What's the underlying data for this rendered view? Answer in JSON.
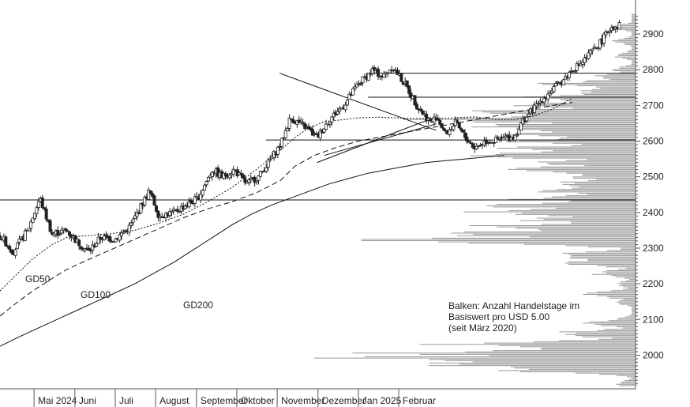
{
  "chart_data": {
    "type": "candlestick",
    "price_range": [
      1910,
      2960
    ],
    "x_tick_labels": [
      "Mai 2024",
      "Juni",
      "Juli",
      "August",
      "September",
      "Oktober",
      "November",
      "Dezember",
      "Jan 2025",
      "Februar"
    ],
    "y_tick_values": [
      2000,
      2100,
      2200,
      2300,
      2400,
      2500,
      2600,
      2700,
      2800,
      2900
    ],
    "moving_average_labels": {
      "gd50": "GD50",
      "gd100": "GD100",
      "gd200": "GD200"
    },
    "note_lines": [
      "Balken: Anzahl Handelstage im",
      "Basiswert pro USD 5.00",
      "(seit März 2020)"
    ],
    "horizontal_levels": [
      2435,
      2603,
      2723,
      2790
    ],
    "trend_lines": [
      {
        "from": [
          2024.838,
          2790
        ],
        "to": [
          2025.16,
          2630
        ]
      },
      {
        "from": [
          2024.915,
          2540
        ],
        "to": [
          2025.16,
          2668
        ]
      },
      {
        "from": [
          2024.93,
          2560
        ],
        "to": [
          2025.16,
          2648
        ]
      }
    ],
    "price_path": [
      [
        2024.263,
        2335
      ],
      [
        2024.29,
        2290
      ],
      [
        2024.32,
        2350
      ],
      [
        2024.345,
        2440
      ],
      [
        2024.37,
        2340
      ],
      [
        2024.4,
        2350
      ],
      [
        2024.42,
        2320
      ],
      [
        2024.445,
        2290
      ],
      [
        2024.47,
        2330
      ],
      [
        2024.5,
        2325
      ],
      [
        2024.53,
        2360
      ],
      [
        2024.55,
        2410
      ],
      [
        2024.57,
        2460
      ],
      [
        2024.59,
        2390
      ],
      [
        2024.62,
        2400
      ],
      [
        2024.645,
        2420
      ],
      [
        2024.67,
        2440
      ],
      [
        2024.7,
        2520
      ],
      [
        2024.72,
        2500
      ],
      [
        2024.745,
        2520
      ],
      [
        2024.77,
        2480
      ],
      [
        2024.795,
        2500
      ],
      [
        2024.815,
        2540
      ],
      [
        2024.84,
        2590
      ],
      [
        2024.86,
        2665
      ],
      [
        2024.89,
        2640
      ],
      [
        2024.915,
        2610
      ],
      [
        2024.94,
        2660
      ],
      [
        2024.97,
        2700
      ],
      [
        2025.0,
        2760
      ],
      [
        2025.03,
        2800
      ],
      [
        2025.05,
        2780
      ],
      [
        2025.07,
        2810
      ],
      [
        2025.1,
        2750
      ],
      [
        2025.12,
        2700
      ],
      [
        2025.15,
        2650
      ],
      [
        2025.16,
        2670
      ],
      [
        2025.18,
        2620
      ],
      [
        2025.2,
        2650
      ],
      [
        2025.22,
        2610
      ],
      [
        2025.24,
        2580
      ],
      [
        2025.26,
        2600
      ],
      [
        2025.28,
        2600
      ],
      [
        2025.3,
        2610
      ],
      [
        2025.32,
        2610
      ],
      [
        2025.34,
        2660
      ],
      [
        2025.36,
        2690
      ],
      [
        2025.38,
        2720
      ],
      [
        2025.4,
        2745
      ],
      [
        2025.42,
        2770
      ],
      [
        2025.44,
        2800
      ],
      [
        2025.46,
        2820
      ],
      [
        2025.48,
        2850
      ],
      [
        2025.5,
        2880
      ],
      [
        2025.52,
        2920
      ],
      [
        2025.54,
        2925
      ]
    ],
    "gd50_path": [
      [
        2024.263,
        2180
      ],
      [
        2024.3,
        2230
      ],
      [
        2024.33,
        2270
      ],
      [
        2024.37,
        2310
      ],
      [
        2024.4,
        2330
      ],
      [
        2024.44,
        2335
      ],
      [
        2024.49,
        2340
      ],
      [
        2024.54,
        2350
      ],
      [
        2024.59,
        2370
      ],
      [
        2024.64,
        2395
      ],
      [
        2024.69,
        2430
      ],
      [
        2024.74,
        2470
      ],
      [
        2024.79,
        2520
      ],
      [
        2024.84,
        2575
      ],
      [
        2024.87,
        2610
      ],
      [
        2024.89,
        2630
      ],
      [
        2024.93,
        2655
      ],
      [
        2024.97,
        2660
      ],
      [
        2025.0,
        2665
      ],
      [
        2025.04,
        2667
      ],
      [
        2025.08,
        2665
      ],
      [
        2025.12,
        2663
      ],
      [
        2025.16,
        2663
      ],
      [
        2025.2,
        2665
      ],
      [
        2025.24,
        2668
      ],
      [
        2025.28,
        2660
      ],
      [
        2025.32,
        2660
      ],
      [
        2025.36,
        2670
      ],
      [
        2025.4,
        2690
      ],
      [
        2025.44,
        2720
      ]
    ],
    "gd100_path": [
      [
        2024.263,
        2110
      ],
      [
        2024.3,
        2150
      ],
      [
        2024.33,
        2180
      ],
      [
        2024.37,
        2215
      ],
      [
        2024.4,
        2240
      ],
      [
        2024.44,
        2265
      ],
      [
        2024.49,
        2295
      ],
      [
        2024.54,
        2325
      ],
      [
        2024.59,
        2355
      ],
      [
        2024.64,
        2385
      ],
      [
        2024.69,
        2410
      ],
      [
        2024.74,
        2430
      ],
      [
        2024.79,
        2455
      ],
      [
        2024.84,
        2490
      ],
      [
        2024.87,
        2530
      ],
      [
        2024.91,
        2560
      ],
      [
        2024.95,
        2580
      ],
      [
        2025.0,
        2600
      ],
      [
        2025.04,
        2610
      ],
      [
        2025.08,
        2620
      ],
      [
        2025.12,
        2630
      ],
      [
        2025.16,
        2640
      ],
      [
        2025.2,
        2650
      ],
      [
        2025.24,
        2660
      ],
      [
        2025.28,
        2670
      ],
      [
        2025.32,
        2680
      ],
      [
        2025.36,
        2690
      ],
      [
        2025.4,
        2700
      ],
      [
        2025.44,
        2708
      ]
    ],
    "gd200_path": [
      [
        2024.263,
        2025
      ],
      [
        2024.3,
        2050
      ],
      [
        2024.34,
        2075
      ],
      [
        2024.38,
        2100
      ],
      [
        2024.42,
        2125
      ],
      [
        2024.46,
        2150
      ],
      [
        2024.5,
        2175
      ],
      [
        2024.54,
        2200
      ],
      [
        2024.58,
        2230
      ],
      [
        2024.62,
        2260
      ],
      [
        2024.66,
        2295
      ],
      [
        2024.7,
        2330
      ],
      [
        2024.74,
        2365
      ],
      [
        2024.78,
        2395
      ],
      [
        2024.82,
        2420
      ],
      [
        2024.86,
        2440
      ],
      [
        2024.9,
        2460
      ],
      [
        2024.94,
        2480
      ],
      [
        2024.98,
        2495
      ],
      [
        2025.02,
        2510
      ],
      [
        2025.06,
        2520
      ],
      [
        2025.1,
        2530
      ],
      [
        2025.14,
        2540
      ],
      [
        2025.18,
        2545
      ],
      [
        2025.22,
        2550
      ],
      [
        2025.26,
        2555
      ],
      [
        2025.3,
        2560
      ]
    ],
    "volume_profile_bin_usd": 5,
    "volume_profile_peaks": [
      [
        1920,
        0.05
      ],
      [
        1960,
        0.35
      ],
      [
        1975,
        0.55
      ],
      [
        1990,
        0.7
      ],
      [
        2005,
        0.6
      ],
      [
        2030,
        0.45
      ],
      [
        2060,
        0.2
      ],
      [
        2090,
        0.12
      ],
      [
        2100,
        0.05
      ],
      [
        2150,
        0.05
      ],
      [
        2170,
        0.12
      ],
      [
        2200,
        0.05
      ],
      [
        2230,
        0.1
      ],
      [
        2260,
        0.18
      ],
      [
        2280,
        0.22
      ],
      [
        2320,
        0.7
      ],
      [
        2340,
        0.55
      ],
      [
        2360,
        0.4
      ],
      [
        2380,
        0.3
      ],
      [
        2400,
        0.4
      ],
      [
        2420,
        0.35
      ],
      [
        2440,
        0.3
      ],
      [
        2460,
        0.25
      ],
      [
        2480,
        0.2
      ],
      [
        2500,
        0.15
      ],
      [
        2520,
        0.3
      ],
      [
        2540,
        0.22
      ],
      [
        2560,
        0.4
      ],
      [
        2580,
        0.3
      ],
      [
        2600,
        0.28
      ],
      [
        2620,
        0.35
      ],
      [
        2640,
        0.45
      ],
      [
        2660,
        0.5
      ],
      [
        2680,
        0.42
      ],
      [
        2700,
        0.32
      ],
      [
        2720,
        0.28
      ],
      [
        2740,
        0.15
      ],
      [
        2760,
        0.22
      ],
      [
        2780,
        0.1
      ],
      [
        2800,
        0.05
      ],
      [
        2840,
        0.05
      ],
      [
        2880,
        0.05
      ],
      [
        2920,
        0.05
      ]
    ],
    "grid": false,
    "legend": "none"
  }
}
